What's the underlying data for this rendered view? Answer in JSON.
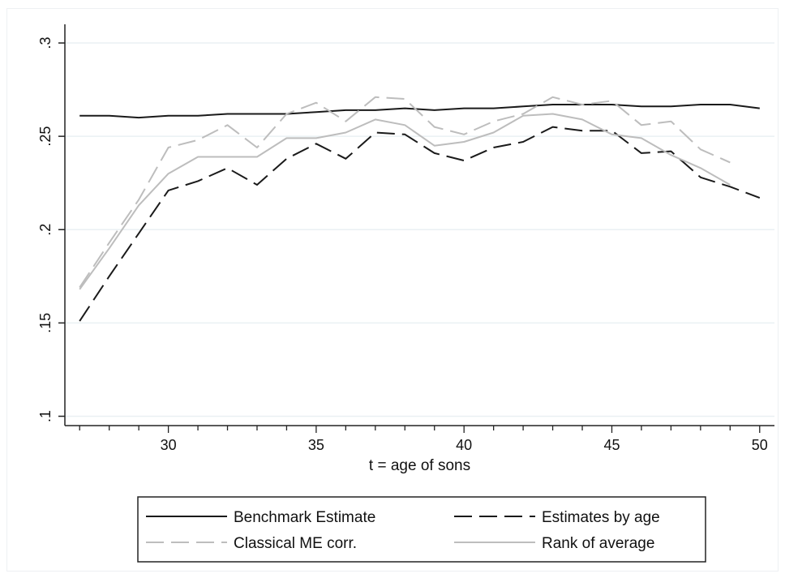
{
  "chart_data": {
    "type": "line",
    "title": "",
    "xlabel": "t = age of sons",
    "ylabel": "",
    "xlim": [
      26.5,
      50.5
    ],
    "ylim": [
      0.095,
      0.31
    ],
    "x_ticks": [
      30,
      35,
      40,
      45,
      50
    ],
    "x_tick_labels": [
      "30",
      "35",
      "40",
      "45",
      "50"
    ],
    "y_ticks": [
      0.1,
      0.15,
      0.2,
      0.25,
      0.3
    ],
    "y_tick_labels": [
      ".1",
      ".15",
      ".2",
      ".25",
      ".3"
    ],
    "grid": "horizontal",
    "legend_position": "bottom",
    "series": [
      {
        "name": "Benchmark Estimate",
        "color": "#1a1a1a",
        "dash": "solid",
        "x": [
          27,
          28,
          29,
          30,
          31,
          32,
          33,
          34,
          35,
          36,
          37,
          38,
          39,
          40,
          41,
          42,
          43,
          44,
          45,
          46,
          47,
          48,
          49,
          50
        ],
        "values": [
          0.261,
          0.261,
          0.26,
          0.261,
          0.261,
          0.262,
          0.262,
          0.262,
          0.263,
          0.264,
          0.264,
          0.265,
          0.264,
          0.265,
          0.265,
          0.266,
          0.267,
          0.267,
          0.267,
          0.266,
          0.266,
          0.267,
          0.267,
          0.265
        ]
      },
      {
        "name": "Estimates by age",
        "color": "#1a1a1a",
        "dash": "long-dash",
        "x": [
          27,
          28,
          29,
          30,
          31,
          32,
          33,
          34,
          35,
          36,
          37,
          38,
          39,
          40,
          41,
          42,
          43,
          44,
          45,
          46,
          47,
          48,
          49,
          50
        ],
        "values": [
          0.151,
          0.175,
          0.198,
          0.221,
          0.226,
          0.233,
          0.224,
          0.238,
          0.246,
          0.238,
          0.252,
          0.251,
          0.241,
          0.237,
          0.244,
          0.247,
          0.255,
          0.253,
          0.253,
          0.241,
          0.242,
          0.228,
          0.223,
          0.217
        ]
      },
      {
        "name": "Classical ME corr.",
        "color": "#bdbdbd",
        "dash": "long-dash",
        "x": [
          27,
          28,
          29,
          30,
          31,
          32,
          33,
          34,
          35,
          36,
          37,
          38,
          39,
          40,
          41,
          42,
          43,
          44,
          45,
          46,
          47,
          48,
          49
        ],
        "values": [
          0.169,
          0.193,
          0.216,
          0.244,
          0.248,
          0.256,
          0.244,
          0.262,
          0.268,
          0.258,
          0.271,
          0.27,
          0.255,
          0.251,
          0.258,
          0.262,
          0.271,
          0.267,
          0.269,
          0.256,
          0.258,
          0.243,
          0.236
        ]
      },
      {
        "name": "Rank of average",
        "color": "#bdbdbd",
        "dash": "solid",
        "x": [
          27,
          28,
          29,
          30,
          31,
          32,
          33,
          34,
          35,
          36,
          37,
          38,
          39,
          40,
          41,
          42,
          43,
          44,
          45,
          46,
          47,
          48,
          49
        ],
        "values": [
          0.168,
          0.19,
          0.213,
          0.23,
          0.239,
          0.239,
          0.239,
          0.249,
          0.249,
          0.252,
          0.259,
          0.256,
          0.245,
          0.247,
          0.252,
          0.261,
          0.262,
          0.259,
          0.251,
          0.249,
          0.24,
          0.233,
          0.224
        ]
      }
    ]
  }
}
